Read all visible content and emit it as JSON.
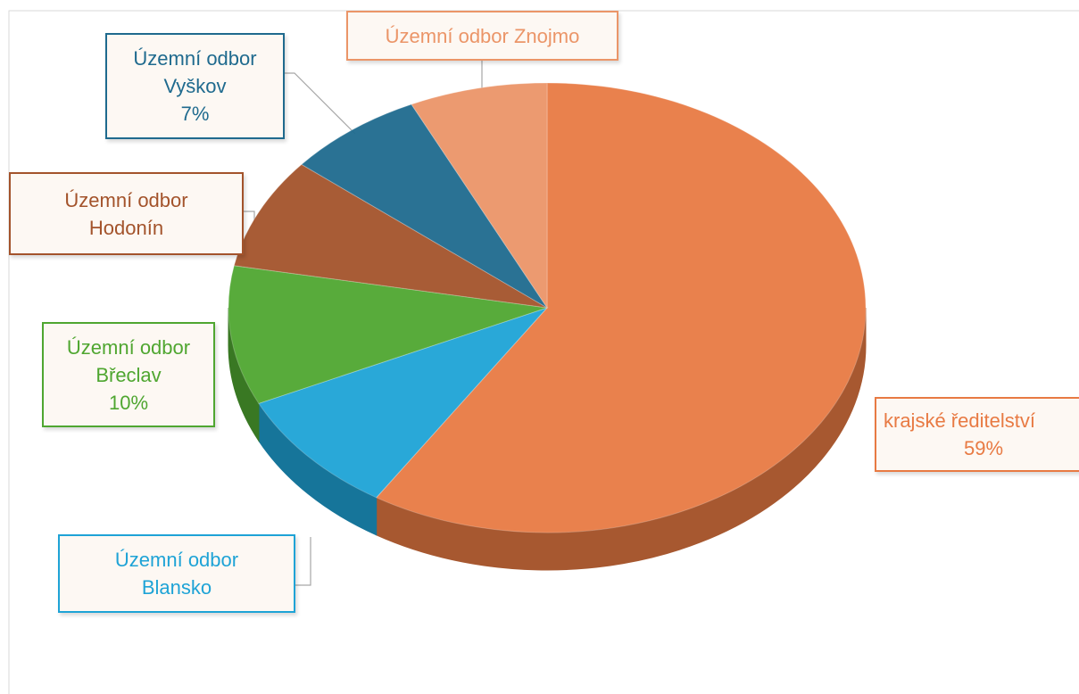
{
  "chart_data": {
    "type": "pie3d",
    "categories": [
      "krajské ředitelství",
      "Územní odbor Blansko",
      "Územní odbor Břeclav",
      "Územní odbor Hodonín",
      "Územní odbor Vyškov",
      "Územní odbor Znojmo"
    ],
    "values": [
      59,
      9,
      10,
      8,
      7,
      7
    ],
    "value_labels": [
      "59%",
      null,
      "10%",
      null,
      "7%",
      null
    ],
    "colors": [
      "#e87a43",
      "#1ea3d6",
      "#4fa630",
      "#a3532b",
      "#1f6a8e",
      "#eb9568"
    ]
  }
}
